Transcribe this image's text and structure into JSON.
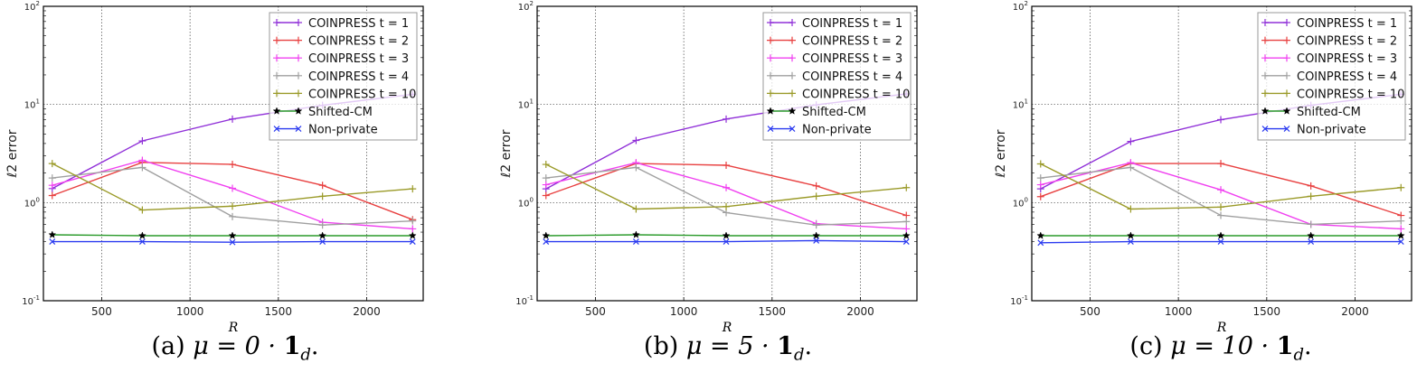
{
  "chart_data": [
    {
      "type": "line",
      "caption": {
        "label": "(a)",
        "mu": "μ = 0 ·",
        "bold": "1",
        "sub": "d",
        "end": "."
      },
      "xlabel": "R",
      "ylabel": "ℓ2 error",
      "yscale": "log",
      "xlim": [
        170,
        2320
      ],
      "ylim": [
        0.1,
        100
      ],
      "xticks": [
        500,
        1000,
        1500,
        2000
      ],
      "yticks": [
        {
          "value": 0.1,
          "base": "10",
          "exp": "-1"
        },
        {
          "value": 1,
          "base": "10",
          "exp": "0"
        },
        {
          "value": 10,
          "base": "10",
          "exp": "1"
        },
        {
          "value": 100,
          "base": "10",
          "exp": "2"
        }
      ],
      "grid": true,
      "legend_position": "top-right",
      "x": [
        220,
        730,
        1240,
        1750,
        2260
      ],
      "series": [
        {
          "name": "COINPRESS t = 1",
          "values": [
            1.39,
            4.25,
            7.1,
            9.8,
            12.7
          ]
        },
        {
          "name": "COINPRESS t = 2",
          "values": [
            1.18,
            2.57,
            2.45,
            1.5,
            0.67
          ]
        },
        {
          "name": "COINPRESS t = 3",
          "values": [
            1.5,
            2.7,
            1.4,
            0.63,
            0.54
          ]
        },
        {
          "name": "COINPRESS t = 4",
          "values": [
            1.78,
            2.28,
            0.72,
            0.59,
            0.65
          ]
        },
        {
          "name": "COINPRESS t = 10",
          "values": [
            2.5,
            0.84,
            0.92,
            1.16,
            1.38
          ]
        },
        {
          "name": "Shifted-CM",
          "values": [
            0.47,
            0.46,
            0.46,
            0.46,
            0.46
          ]
        },
        {
          "name": "Non-private",
          "values": [
            0.4,
            0.4,
            0.395,
            0.4,
            0.4
          ]
        }
      ]
    },
    {
      "type": "line",
      "caption": {
        "label": "(b)",
        "mu": "μ = 5 ·",
        "bold": "1",
        "sub": "d",
        "end": "."
      },
      "xlabel": "R",
      "ylabel": "ℓ2 error",
      "yscale": "log",
      "xlim": [
        170,
        2320
      ],
      "ylim": [
        0.1,
        100
      ],
      "xticks": [
        500,
        1000,
        1500,
        2000
      ],
      "yticks": [
        {
          "value": 0.1,
          "base": "10",
          "exp": "-1"
        },
        {
          "value": 1,
          "base": "10",
          "exp": "0"
        },
        {
          "value": 10,
          "base": "10",
          "exp": "1"
        },
        {
          "value": 100,
          "base": "10",
          "exp": "2"
        }
      ],
      "grid": true,
      "legend_position": "top-right",
      "x": [
        220,
        730,
        1240,
        1750,
        2260
      ],
      "series": [
        {
          "name": "COINPRESS t = 1",
          "values": [
            1.38,
            4.3,
            7.1,
            9.9,
            12.8
          ]
        },
        {
          "name": "COINPRESS t = 2",
          "values": [
            1.18,
            2.5,
            2.4,
            1.48,
            0.74
          ]
        },
        {
          "name": "COINPRESS t = 3",
          "values": [
            1.52,
            2.55,
            1.42,
            0.61,
            0.54
          ]
        },
        {
          "name": "COINPRESS t = 4",
          "values": [
            1.78,
            2.28,
            0.79,
            0.59,
            0.64
          ]
        },
        {
          "name": "COINPRESS t = 10",
          "values": [
            2.45,
            0.86,
            0.91,
            1.16,
            1.42
          ]
        },
        {
          "name": "Shifted-CM",
          "values": [
            0.46,
            0.47,
            0.46,
            0.46,
            0.46
          ]
        },
        {
          "name": "Non-private",
          "values": [
            0.4,
            0.4,
            0.4,
            0.41,
            0.4
          ]
        }
      ]
    },
    {
      "type": "line",
      "caption": {
        "label": "(c)",
        "mu": "μ = 10 ·",
        "bold": "1",
        "sub": "d",
        "end": "."
      },
      "xlabel": "R",
      "ylabel": "ℓ2 error",
      "yscale": "log",
      "xlim": [
        170,
        2320
      ],
      "ylim": [
        0.1,
        100
      ],
      "xticks": [
        500,
        1000,
        1500,
        2000
      ],
      "yticks": [
        {
          "value": 0.1,
          "base": "10",
          "exp": "-1"
        },
        {
          "value": 1,
          "base": "10",
          "exp": "0"
        },
        {
          "value": 10,
          "base": "10",
          "exp": "1"
        },
        {
          "value": 100,
          "base": "10",
          "exp": "2"
        }
      ],
      "grid": true,
      "legend_position": "top-right",
      "x": [
        220,
        730,
        1240,
        1750,
        2260
      ],
      "series": [
        {
          "name": "COINPRESS t = 1",
          "values": [
            1.38,
            4.2,
            7.0,
            9.8,
            12.7
          ]
        },
        {
          "name": "COINPRESS t = 2",
          "values": [
            1.15,
            2.5,
            2.5,
            1.48,
            0.74
          ]
        },
        {
          "name": "COINPRESS t = 3",
          "values": [
            1.52,
            2.55,
            1.35,
            0.6,
            0.54
          ]
        },
        {
          "name": "COINPRESS t = 4",
          "values": [
            1.78,
            2.28,
            0.74,
            0.6,
            0.65
          ]
        },
        {
          "name": "COINPRESS t = 10",
          "values": [
            2.48,
            0.86,
            0.9,
            1.16,
            1.42
          ]
        },
        {
          "name": "Shifted-CM",
          "values": [
            0.46,
            0.46,
            0.46,
            0.46,
            0.46
          ]
        },
        {
          "name": "Non-private",
          "values": [
            0.39,
            0.4,
            0.4,
            0.4,
            0.4
          ]
        }
      ]
    }
  ],
  "series_style": [
    {
      "color": "#9030d8",
      "marker": "plus"
    },
    {
      "color": "#e84040",
      "marker": "plus"
    },
    {
      "color": "#f040f0",
      "marker": "plus"
    },
    {
      "color": "#a0a0a0",
      "marker": "plus"
    },
    {
      "color": "#9a9a28",
      "marker": "plus"
    },
    {
      "color": "#2a9a2a",
      "marker": "star"
    },
    {
      "color": "#2a3af0",
      "marker": "x"
    }
  ]
}
